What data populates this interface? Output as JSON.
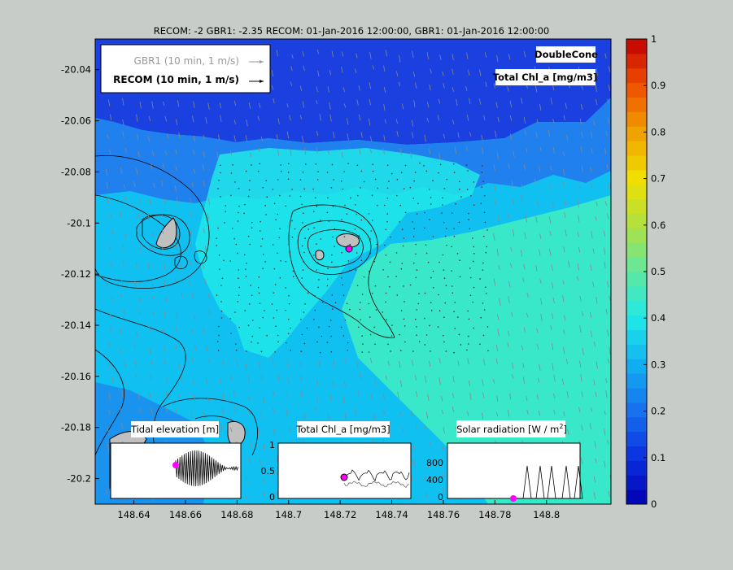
{
  "title": "RECOM: -2 GBR1: -2.35 RECOM: 01-Jan-2016 12:00:00, GBR1: 01-Jan-2016 12:00:00",
  "legend": {
    "gbr1_label": "GBR1  (10 min, 1 m/s)",
    "recom_label": "RECOM (10 min, 1 m/s)"
  },
  "labels": {
    "model": "DoubleCone",
    "variable": "Total Chl_a [mg/m3]"
  },
  "colors": {
    "background": "#c8ccc8",
    "land": "#c0c0c0",
    "marker": "#ff00ff",
    "deep_blue": "#1a40e0",
    "mid_blue": "#2080ee",
    "light_blue": "#10c0f0",
    "cyan": "#20e8e8",
    "aqua_green": "#38e8c8"
  },
  "chart_data": {
    "type": "heatmap",
    "x": {
      "ticks": [
        148.64,
        148.66,
        148.68,
        148.7,
        148.72,
        148.74,
        148.76,
        148.78,
        148.8
      ],
      "range": [
        148.625,
        148.825
      ]
    },
    "y": {
      "ticks": [
        -20.04,
        -20.06,
        -20.08,
        -20.1,
        -20.12,
        -20.14,
        -20.16,
        -20.18,
        -20.2
      ],
      "range": [
        -20.21,
        -20.028
      ]
    },
    "colorbar": {
      "min": 0,
      "max": 1,
      "ticks": [
        "0",
        "0.1",
        "0.2",
        "0.3",
        "0.4",
        "0.5",
        "0.6",
        "0.7",
        "0.8",
        "0.9",
        "1"
      ]
    },
    "insets": [
      {
        "title": "Tidal elevation [m]",
        "type": "line",
        "current_marker_fraction": [
          0.5,
          0.6
        ]
      },
      {
        "title": "Total Chl_a [mg/m3]",
        "type": "line",
        "yticks": [
          "0",
          "0.5",
          "1"
        ],
        "current_point": 0.4,
        "current_marker_fraction": [
          0.5,
          0.4
        ]
      },
      {
        "title": "Solar radiation [W / m",
        "title_sup": "2",
        "title_end": "]",
        "type": "line",
        "yticks": [
          "0",
          "400",
          "800"
        ],
        "current_point": 0,
        "current_marker_fraction": [
          0.5,
          1.0
        ]
      }
    ]
  }
}
